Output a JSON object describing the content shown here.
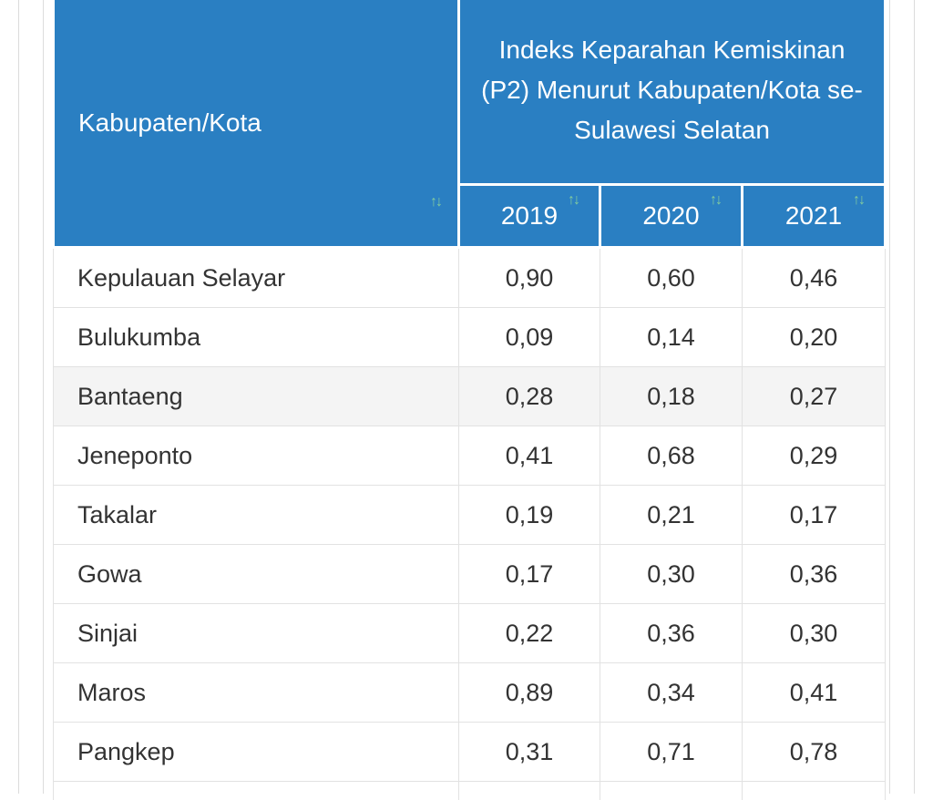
{
  "table": {
    "col_name_header": "Kabupaten/Kota",
    "group_header": "Indeks Keparahan Kemiskinan (P2) Menurut Kabupaten/Kota se-Sulawesi Selatan",
    "years": [
      "2019",
      "2020",
      "2021"
    ],
    "sort_icon": "sort-arrows-icon",
    "sort_glyph": "↑↓",
    "rows": [
      {
        "name": "Kepulauan Selayar",
        "values": [
          "0,90",
          "0,60",
          "0,46"
        ]
      },
      {
        "name": "Bulukumba",
        "values": [
          "0,09",
          "0,14",
          "0,20"
        ]
      },
      {
        "name": "Bantaeng",
        "values": [
          "0,28",
          "0,18",
          "0,27"
        ]
      },
      {
        "name": "Jeneponto",
        "values": [
          "0,41",
          "0,68",
          "0,29"
        ]
      },
      {
        "name": "Takalar",
        "values": [
          "0,19",
          "0,21",
          "0,17"
        ]
      },
      {
        "name": "Gowa",
        "values": [
          "0,17",
          "0,30",
          "0,36"
        ]
      },
      {
        "name": "Sinjai",
        "values": [
          "0,22",
          "0,36",
          "0,30"
        ]
      },
      {
        "name": "Maros",
        "values": [
          "0,89",
          "0,34",
          "0,41"
        ]
      },
      {
        "name": "Pangkep",
        "values": [
          "0,31",
          "0,71",
          "0,78"
        ]
      }
    ],
    "colors": {
      "header_bg": "#2a7fc2",
      "header_text": "#ffffff",
      "sort_icon": "#83cc9e",
      "alt_row": "#f4f4f4"
    }
  }
}
